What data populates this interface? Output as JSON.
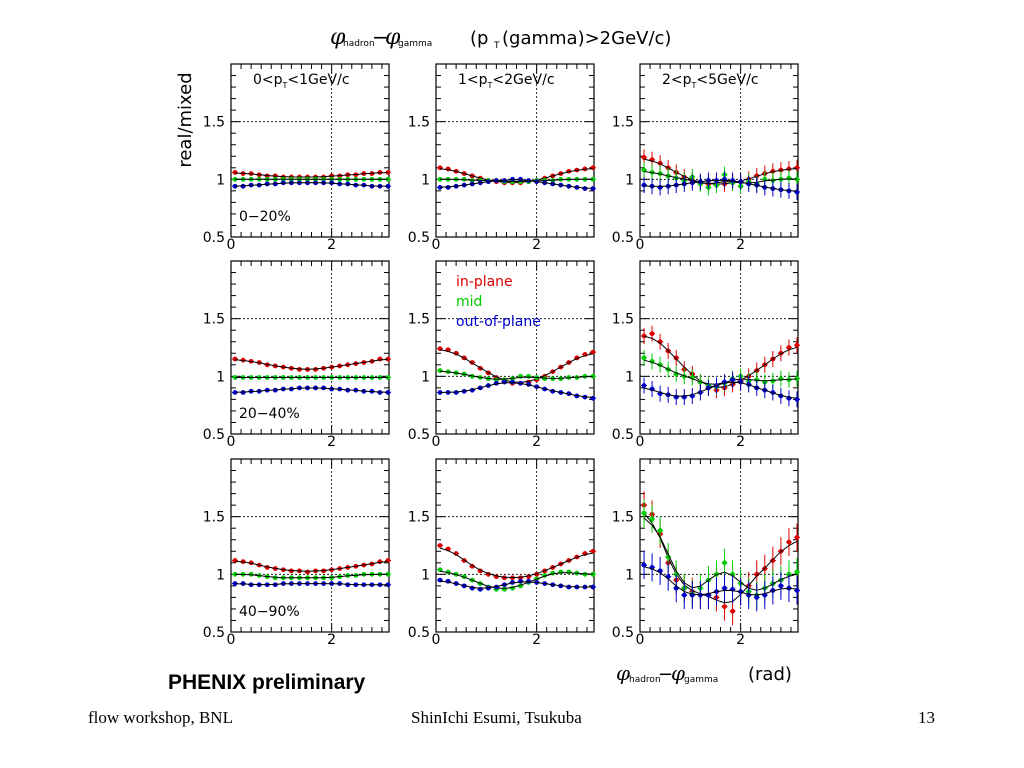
{
  "figure": {
    "title_prefix": "(p",
    "title_sub": "T",
    "title_suffix": "(gamma)>2GeV/c)",
    "ylabel": "real/mixed",
    "xlabel_unit": "(rad)",
    "phi": "φ",
    "sub_hadron": "hadron",
    "sub_gamma": "gamma",
    "minus": "−",
    "watermark": "PHENIX preliminary"
  },
  "colors": {
    "in_plane": "#dd0000",
    "mid": "#00cc00",
    "out_of_plane": "#0000cc",
    "fit": "#000000"
  },
  "footer": {
    "left": "flow workshop, BNL",
    "center": "ShinIchi Esumi, Tsukuba",
    "page": "13"
  },
  "chart_data": {
    "type": "scatter",
    "x_ticks": [
      "0",
      "2"
    ],
    "y_ticks": [
      "0.5",
      "1",
      "1.5"
    ],
    "xlim": [
      0,
      3.14
    ],
    "ylim": [
      0.5,
      2.0
    ],
    "columns": [
      {
        "pre": "0<p",
        "sub": "T",
        "post": "<1GeV/c"
      },
      {
        "pre": "1<p",
        "sub": "T",
        "post": "<2GeV/c"
      },
      {
        "pre": "2<p",
        "sub": "T",
        "post": "<5GeV/c"
      }
    ],
    "rows": [
      "0−20%",
      "20−40%",
      "40−90%"
    ],
    "legend": [
      "in-plane",
      "mid",
      "out-of-plane"
    ],
    "x": [
      0.08,
      0.24,
      0.4,
      0.56,
      0.72,
      0.88,
      1.04,
      1.2,
      1.36,
      1.52,
      1.68,
      1.84,
      2.0,
      2.16,
      2.32,
      2.48,
      2.64,
      2.8,
      2.96,
      3.12
    ],
    "panels": [
      {
        "row": 0,
        "col": 0,
        "series": [
          {
            "name": "in-plane",
            "values": [
              1.06,
              1.05,
              1.05,
              1.04,
              1.03,
              1.03,
              1.02,
              1.02,
              1.02,
              1.02,
              1.02,
              1.02,
              1.03,
              1.03,
              1.04,
              1.04,
              1.05,
              1.05,
              1.06,
              1.06
            ]
          },
          {
            "name": "mid",
            "values": [
              1.0,
              1.0,
              1.0,
              1.0,
              1.0,
              1.0,
              1.0,
              1.0,
              1.0,
              1.0,
              1.0,
              1.0,
              1.0,
              1.0,
              1.0,
              1.0,
              1.0,
              1.0,
              1.0,
              1.0
            ]
          },
          {
            "name": "out-of-plane",
            "values": [
              0.94,
              0.94,
              0.95,
              0.95,
              0.96,
              0.96,
              0.97,
              0.97,
              0.97,
              0.97,
              0.97,
              0.97,
              0.97,
              0.96,
              0.96,
              0.95,
              0.95,
              0.94,
              0.94,
              0.94
            ]
          }
        ]
      },
      {
        "row": 0,
        "col": 1,
        "series": [
          {
            "name": "in-plane",
            "values": [
              1.1,
              1.09,
              1.07,
              1.05,
              1.03,
              1.01,
              0.99,
              0.98,
              0.97,
              0.97,
              0.97,
              0.98,
              0.99,
              1.01,
              1.03,
              1.05,
              1.07,
              1.08,
              1.09,
              1.1
            ]
          },
          {
            "name": "mid",
            "values": [
              1.0,
              1.0,
              1.0,
              1.0,
              0.99,
              0.99,
              0.99,
              0.99,
              0.98,
              0.98,
              0.98,
              0.98,
              0.99,
              0.99,
              0.99,
              1.0,
              1.0,
              1.0,
              1.0,
              1.0
            ]
          },
          {
            "name": "out-of-plane",
            "values": [
              0.93,
              0.93,
              0.94,
              0.95,
              0.96,
              0.97,
              0.98,
              0.99,
              0.99,
              1.0,
              1.0,
              0.99,
              0.98,
              0.97,
              0.96,
              0.95,
              0.94,
              0.93,
              0.92,
              0.92
            ]
          }
        ]
      },
      {
        "row": 0,
        "col": 2,
        "series": [
          {
            "name": "in-plane",
            "values": [
              1.19,
              1.17,
              1.14,
              1.1,
              1.06,
              1.02,
              0.99,
              0.97,
              0.96,
              0.95,
              0.96,
              0.97,
              0.98,
              1.0,
              1.03,
              1.05,
              1.07,
              1.08,
              1.09,
              1.1
            ]
          },
          {
            "name": "mid",
            "values": [
              1.08,
              1.06,
              1.05,
              1.03,
              1.01,
              0.99,
              1.02,
              0.96,
              0.93,
              0.95,
              1.04,
              0.97,
              0.94,
              0.98,
              0.96,
              1.0,
              0.99,
              1.0,
              1.01,
              1.0
            ]
          },
          {
            "name": "out-of-plane",
            "values": [
              0.95,
              0.94,
              0.93,
              0.94,
              0.95,
              0.96,
              0.97,
              0.98,
              0.99,
              0.99,
              1.0,
              0.99,
              0.98,
              0.96,
              0.95,
              0.93,
              0.92,
              0.91,
              0.9,
              0.89
            ]
          }
        ]
      },
      {
        "row": 1,
        "col": 0,
        "series": [
          {
            "name": "in-plane",
            "values": [
              1.15,
              1.14,
              1.13,
              1.12,
              1.1,
              1.09,
              1.08,
              1.07,
              1.06,
              1.06,
              1.06,
              1.07,
              1.08,
              1.09,
              1.1,
              1.11,
              1.12,
              1.13,
              1.15,
              1.15
            ]
          },
          {
            "name": "mid",
            "values": [
              0.99,
              0.99,
              0.99,
              0.99,
              0.99,
              0.99,
              0.99,
              0.99,
              0.99,
              0.99,
              0.99,
              0.99,
              0.99,
              0.99,
              0.99,
              0.99,
              0.99,
              0.99,
              0.99,
              0.99
            ]
          },
          {
            "name": "out-of-plane",
            "values": [
              0.86,
              0.86,
              0.87,
              0.87,
              0.88,
              0.88,
              0.89,
              0.89,
              0.9,
              0.9,
              0.9,
              0.9,
              0.89,
              0.89,
              0.88,
              0.88,
              0.87,
              0.87,
              0.86,
              0.86
            ]
          }
        ]
      },
      {
        "row": 1,
        "col": 1,
        "series": [
          {
            "name": "in-plane",
            "values": [
              1.24,
              1.23,
              1.2,
              1.16,
              1.12,
              1.07,
              1.03,
              0.99,
              0.96,
              0.94,
              0.94,
              0.95,
              0.97,
              1.0,
              1.04,
              1.08,
              1.12,
              1.16,
              1.19,
              1.21
            ]
          },
          {
            "name": "mid",
            "values": [
              1.05,
              1.04,
              1.03,
              1.02,
              1.0,
              0.99,
              0.98,
              0.97,
              0.97,
              0.98,
              1.0,
              1.0,
              0.99,
              0.98,
              0.98,
              0.98,
              0.99,
              0.99,
              1.0,
              1.0
            ]
          },
          {
            "name": "out-of-plane",
            "values": [
              0.86,
              0.86,
              0.86,
              0.87,
              0.88,
              0.9,
              0.92,
              0.94,
              0.95,
              0.95,
              0.94,
              0.93,
              0.91,
              0.89,
              0.87,
              0.86,
              0.85,
              0.83,
              0.82,
              0.81
            ]
          }
        ]
      },
      {
        "row": 1,
        "col": 2,
        "series": [
          {
            "name": "in-plane",
            "values": [
              1.35,
              1.37,
              1.3,
              1.22,
              1.16,
              1.06,
              1.02,
              0.95,
              0.9,
              0.88,
              0.9,
              0.93,
              0.96,
              1.0,
              1.05,
              1.1,
              1.15,
              1.2,
              1.25,
              1.27
            ]
          },
          {
            "name": "mid",
            "values": [
              1.16,
              1.13,
              1.1,
              1.06,
              1.02,
              1.0,
              0.99,
              0.95,
              0.92,
              0.91,
              0.94,
              0.98,
              1.0,
              0.96,
              0.97,
              0.95,
              0.96,
              0.98,
              0.97,
              0.98
            ]
          },
          {
            "name": "out-of-plane",
            "values": [
              0.92,
              0.89,
              0.85,
              0.84,
              0.82,
              0.82,
              0.83,
              0.86,
              0.9,
              0.92,
              0.95,
              0.97,
              0.95,
              0.93,
              0.9,
              0.88,
              0.86,
              0.83,
              0.81,
              0.8
            ]
          }
        ]
      },
      {
        "row": 2,
        "col": 0,
        "series": [
          {
            "name": "in-plane",
            "values": [
              1.12,
              1.11,
              1.1,
              1.08,
              1.06,
              1.05,
              1.04,
              1.03,
              1.03,
              1.02,
              1.03,
              1.03,
              1.04,
              1.05,
              1.06,
              1.07,
              1.08,
              1.09,
              1.11,
              1.12
            ]
          },
          {
            "name": "mid",
            "values": [
              1.0,
              1.0,
              1.0,
              0.99,
              0.98,
              0.97,
              0.97,
              0.97,
              0.97,
              0.97,
              0.97,
              0.97,
              0.97,
              0.98,
              0.99,
              0.99,
              1.0,
              1.0,
              1.0,
              1.0
            ]
          },
          {
            "name": "out-of-plane",
            "values": [
              0.92,
              0.92,
              0.91,
              0.91,
              0.91,
              0.91,
              0.92,
              0.92,
              0.92,
              0.92,
              0.92,
              0.92,
              0.92,
              0.92,
              0.91,
              0.91,
              0.91,
              0.91,
              0.91,
              0.91
            ]
          }
        ]
      },
      {
        "row": 2,
        "col": 1,
        "series": [
          {
            "name": "in-plane",
            "values": [
              1.25,
              1.22,
              1.18,
              1.12,
              1.07,
              1.03,
              1.0,
              0.98,
              0.97,
              0.97,
              0.97,
              0.98,
              1.0,
              1.03,
              1.06,
              1.09,
              1.12,
              1.15,
              1.18,
              1.2
            ]
          },
          {
            "name": "mid",
            "values": [
              1.04,
              1.02,
              1.0,
              0.98,
              0.95,
              0.92,
              0.89,
              0.87,
              0.87,
              0.88,
              0.9,
              0.93,
              0.96,
              0.99,
              1.01,
              1.02,
              1.02,
              1.01,
              1.0,
              1.0
            ]
          },
          {
            "name": "out-of-plane",
            "values": [
              0.95,
              0.94,
              0.92,
              0.9,
              0.88,
              0.87,
              0.88,
              0.89,
              0.91,
              0.93,
              0.94,
              0.94,
              0.93,
              0.92,
              0.91,
              0.9,
              0.89,
              0.89,
              0.89,
              0.89
            ]
          }
        ]
      },
      {
        "row": 2,
        "col": 2,
        "series": [
          {
            "name": "in-plane",
            "values": [
              1.6,
              1.52,
              1.35,
              1.1,
              0.95,
              0.88,
              0.85,
              0.82,
              0.82,
              0.8,
              0.72,
              0.68,
              0.85,
              0.9,
              1.0,
              1.05,
              1.12,
              1.2,
              1.28,
              1.32
            ]
          },
          {
            "name": "mid",
            "values": [
              1.53,
              1.48,
              1.38,
              1.15,
              1.0,
              0.88,
              0.83,
              0.88,
              0.95,
              1.0,
              1.1,
              1.0,
              0.92,
              0.85,
              0.82,
              0.88,
              0.92,
              0.95,
              1.0,
              1.02
            ]
          },
          {
            "name": "out-of-plane",
            "values": [
              1.08,
              1.06,
              1.03,
              0.98,
              0.88,
              0.82,
              0.82,
              0.82,
              0.82,
              0.85,
              0.88,
              0.87,
              0.85,
              0.82,
              0.8,
              0.82,
              0.86,
              0.9,
              0.88,
              0.86
            ]
          }
        ]
      }
    ]
  }
}
